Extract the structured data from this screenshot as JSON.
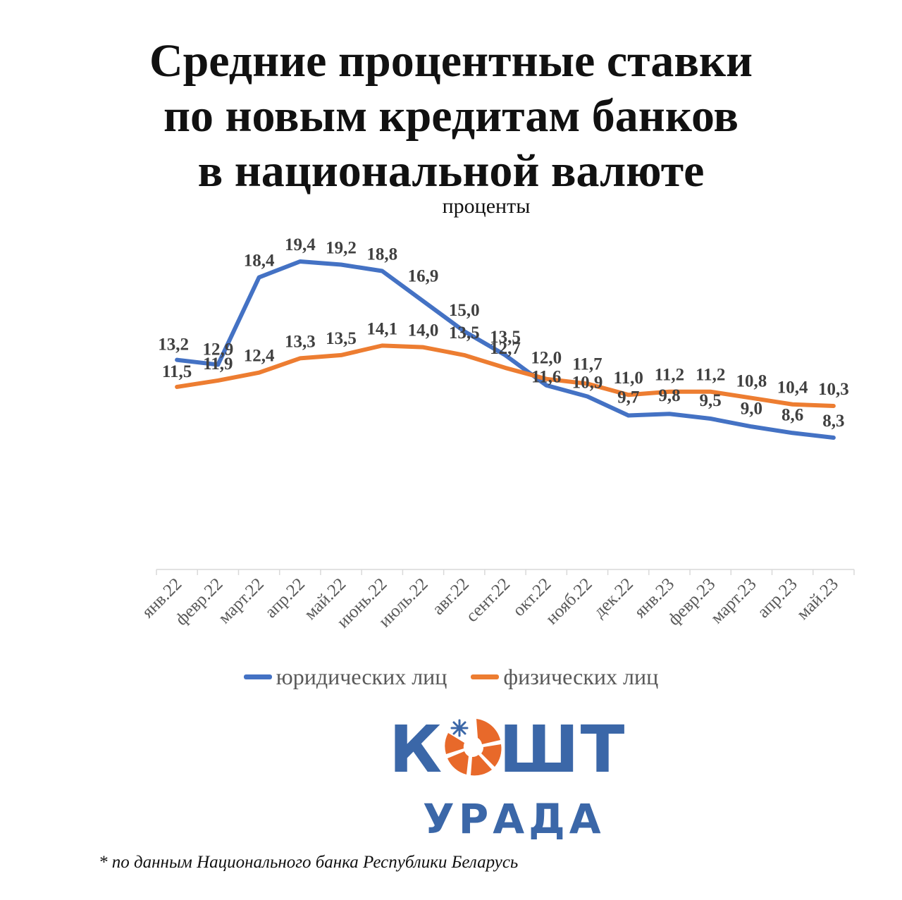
{
  "title_lines": [
    "Средние процентные ставки",
    "по новым кредитам банков",
    "в национальной валюте"
  ],
  "subtitle": "проценты",
  "chart_data": {
    "type": "line",
    "categories": [
      "янв.22",
      "февр.22",
      "март.22",
      "апр.22",
      "май.22",
      "июнь.22",
      "июль.22",
      "авг.22",
      "сент.22",
      "окт.22",
      "нояб.22",
      "дек.22",
      "янв.23",
      "февр.23",
      "март.23",
      "апр.23",
      "май.23"
    ],
    "series": [
      {
        "name": "юридических лиц",
        "color": "#4472c4",
        "values": [
          13.2,
          12.9,
          18.4,
          19.4,
          19.2,
          18.8,
          16.9,
          15.0,
          13.5,
          11.6,
          10.9,
          9.7,
          9.8,
          9.5,
          9.0,
          8.6,
          8.3
        ],
        "labels": [
          "13,2",
          "12,9",
          "18,4",
          "19,4",
          "19,2",
          "18,8",
          "16,9",
          "15,0",
          "13,5",
          "11,6",
          "10,9",
          "9,7",
          "9,8",
          "9,5",
          "9,0",
          "8,6",
          "8,3"
        ]
      },
      {
        "name": "физических лиц",
        "color": "#ed7d31",
        "values": [
          11.5,
          11.9,
          12.4,
          13.3,
          13.5,
          14.1,
          14.0,
          13.5,
          12.7,
          12.0,
          11.7,
          11.0,
          11.2,
          11.2,
          10.8,
          10.4,
          10.3
        ],
        "labels": [
          "11,5",
          "11,9",
          "12,4",
          "13,3",
          "13,5",
          "14,1",
          "14,0",
          "13,5",
          "12,7",
          "12,0",
          "11,7",
          "11,0",
          "11,2",
          "11,2",
          "10,8",
          "10,4",
          "10,3"
        ]
      }
    ],
    "ylim": [
      0,
      20.5
    ],
    "grid": false,
    "legend": "bottom"
  },
  "logo": {
    "top_left": "К",
    "top_right": "ШТ",
    "bottom": "УРАДА",
    "orange": "#e8692a",
    "blue": "#3b67a8"
  },
  "footnote": "* по данным Национального банка Республики Беларусь"
}
